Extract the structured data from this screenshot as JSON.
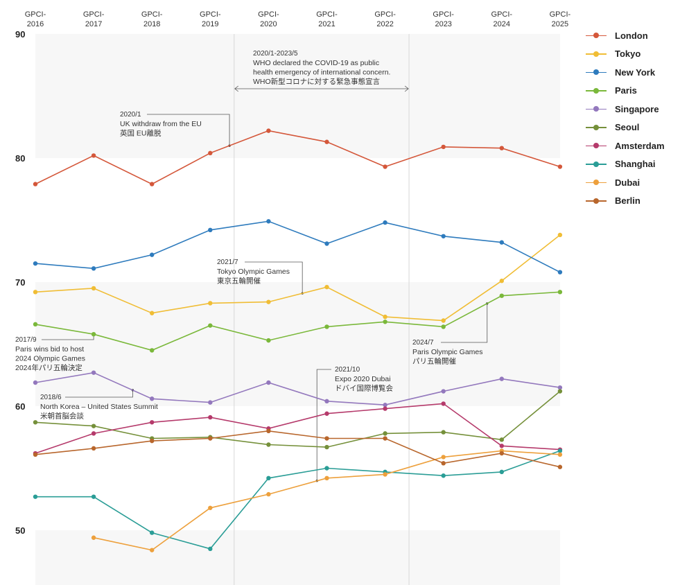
{
  "chart_data": {
    "type": "line",
    "title": "",
    "xlabel": "",
    "ylabel": "",
    "x": [
      "GPCI-2016",
      "GPCI-2017",
      "GPCI-2018",
      "GPCI-2019",
      "GPCI-2020",
      "GPCI-2021",
      "GPCI-2022",
      "GPCI-2023",
      "GPCI-2024",
      "GPCI-2025"
    ],
    "x_tick_lines": [
      [
        "GPCI-",
        "2016"
      ],
      [
        "GPCI-",
        "2017"
      ],
      [
        "GPCI-",
        "2018"
      ],
      [
        "GPCI-",
        "2019"
      ],
      [
        "GPCI-",
        "2020"
      ],
      [
        "GPCI-",
        "2021"
      ],
      [
        "GPCI-",
        "2022"
      ],
      [
        "GPCI-",
        "2023"
      ],
      [
        "GPCI-",
        "2024"
      ],
      [
        "GPCI-",
        "2025"
      ]
    ],
    "x_axis_position": "top",
    "ylim": [
      45.5,
      90
    ],
    "yticks": [
      90,
      80,
      70,
      60,
      50
    ],
    "grid": "alternating horizontal bands",
    "legend_position": "right",
    "series": [
      {
        "name": "London",
        "color": "#d4573a",
        "values": [
          77.9,
          80.2,
          77.9,
          80.4,
          82.2,
          81.3,
          79.3,
          80.9,
          80.8,
          79.3
        ]
      },
      {
        "name": "Tokyo",
        "color": "#f0bd35",
        "values": [
          69.2,
          69.5,
          67.5,
          68.3,
          68.4,
          69.6,
          67.2,
          66.9,
          70.1,
          73.8
        ]
      },
      {
        "name": "New York",
        "color": "#2e7bbd",
        "values": [
          71.5,
          71.1,
          72.2,
          74.2,
          74.9,
          73.1,
          74.8,
          73.7,
          73.2,
          70.8
        ]
      },
      {
        "name": "Paris",
        "color": "#7ab83a",
        "values": [
          66.6,
          65.8,
          64.5,
          66.5,
          65.3,
          66.4,
          66.8,
          66.4,
          68.9,
          69.2
        ]
      },
      {
        "name": "Singapore",
        "color": "#9378bd",
        "values": [
          61.9,
          62.7,
          60.6,
          60.3,
          61.9,
          60.4,
          60.1,
          61.2,
          62.2,
          61.5
        ]
      },
      {
        "name": "Seoul",
        "color": "#75903a",
        "values": [
          58.7,
          58.4,
          57.4,
          57.5,
          56.9,
          56.7,
          57.8,
          57.9,
          57.3,
          61.2
        ]
      },
      {
        "name": "Amsterdam",
        "color": "#b53a6b",
        "values": [
          56.2,
          57.8,
          58.7,
          59.1,
          58.2,
          59.4,
          59.8,
          60.2,
          56.8,
          56.5
        ]
      },
      {
        "name": "Shanghai",
        "color": "#2a9d96",
        "values": [
          52.7,
          52.7,
          49.8,
          48.5,
          54.2,
          55.0,
          54.7,
          54.4,
          54.7,
          56.4
        ]
      },
      {
        "name": "Dubai",
        "color": "#eda03c",
        "values": [
          null,
          49.4,
          48.4,
          51.8,
          52.9,
          54.2,
          54.5,
          55.9,
          56.4,
          56.1
        ]
      },
      {
        "name": "Berlin",
        "color": "#b8662c",
        "values": [
          56.1,
          56.6,
          57.2,
          57.4,
          58.0,
          57.4,
          57.4,
          55.4,
          56.2,
          55.1
        ]
      }
    ],
    "annotations": [
      {
        "id": "covid",
        "type": "range",
        "from_index": 3.41,
        "to_index": 6.41,
        "date": "2020/1-2023/5",
        "lines": [
          "WHO declared the COVID-19 as public",
          "health emergency of international concern.",
          "WHO新型コロナに対する緊急事態宣言"
        ]
      },
      {
        "id": "brexit",
        "series": "London",
        "at_index": 3.33,
        "date": "2020/1",
        "lines": [
          "UK withdraw from the EU",
          "英国 EU離脱"
        ]
      },
      {
        "id": "tokyo-olympics",
        "series": "Tokyo",
        "at_index": 4.58,
        "date": "2021/7",
        "lines": [
          "Tokyo Olympic Games",
          "東京五輪開催"
        ]
      },
      {
        "id": "paris-bid",
        "series": "Paris",
        "at_index": 1.0,
        "date": "2017/9",
        "lines": [
          "Paris wins bid to host",
          "2024 Olympic Games",
          "2024年パリ五輪決定"
        ]
      },
      {
        "id": "nk-us-summit",
        "series": "Singapore",
        "at_index": 1.67,
        "date": "2018/6",
        "lines": [
          "North Korea – United States Summit",
          "米朝首脳会談"
        ]
      },
      {
        "id": "expo-dubai",
        "series": "Dubai",
        "at_index": 4.83,
        "date": "2021/10",
        "lines": [
          "Expo 2020 Dubai",
          "ドバイ国際博覧会"
        ]
      },
      {
        "id": "paris-olympics",
        "series": "Paris",
        "at_index": 7.75,
        "date": "2024/7",
        "lines": [
          "Paris Olympic Games",
          "パリ五輪開催"
        ]
      }
    ]
  }
}
